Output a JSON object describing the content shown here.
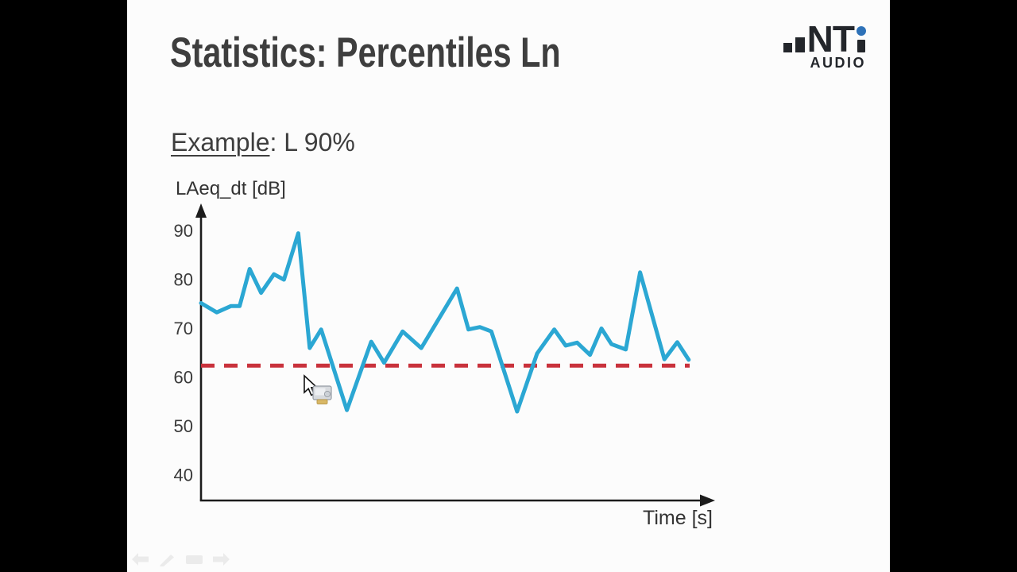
{
  "slide": {
    "title": "Statistics: Percentiles Ln",
    "example_label": "Example",
    "example_suffix": ": L 90%"
  },
  "logo": {
    "brand_nt": "NT",
    "subtitle": "AUDIO",
    "text_color": "#23262b",
    "dot_color": "#2e72b8"
  },
  "chart_data": {
    "type": "line",
    "title": "",
    "ylabel": "LAeq_dt [dB]",
    "xlabel": "Time [s]",
    "yticks": [
      90,
      80,
      70,
      60,
      50,
      40
    ],
    "ylim": [
      35,
      94
    ],
    "xlim": [
      0,
      35
    ],
    "grid": false,
    "legend": "none",
    "x": [
      0,
      1.1,
      2.1,
      2.7,
      3.4,
      4.2,
      5.1,
      5.8,
      6.8,
      7.6,
      8.4,
      10.2,
      11.9,
      12.8,
      14.1,
      15.4,
      17.9,
      18.7,
      19.5,
      20.3,
      22.1,
      23.5,
      24.7,
      25.5,
      26.3,
      27.2,
      28.0,
      28.7,
      29.7,
      30.7,
      32.4,
      33.3,
      34.1
    ],
    "series": [
      {
        "name": "LAeq_dt",
        "color": "#2ba7d3",
        "values": [
          75.2,
          73.3,
          74.6,
          74.6,
          82.2,
          77.3,
          81.1,
          80.0,
          89.5,
          66.0,
          69.8,
          53.3,
          67.3,
          63.0,
          69.4,
          66.0,
          78.2,
          69.8,
          70.3,
          69.4,
          53.0,
          64.9,
          69.8,
          66.5,
          67.1,
          64.6,
          70.0,
          66.8,
          65.7,
          81.5,
          63.7,
          67.2,
          63.6
        ]
      }
    ],
    "threshold": {
      "label": "L 90%",
      "value": 62.4,
      "color": "#c9323c",
      "style": "dashed"
    },
    "axis_color": "#1c1c1c",
    "tick_color": "#3a3a3a"
  },
  "cursor": {
    "pointer": "arrow-cursor",
    "attachment": "screen-icon"
  },
  "presenter_controls": {
    "items": [
      "previous-slide",
      "pen-tool",
      "slide-menu",
      "next-slide"
    ],
    "color": "#ebebeb"
  }
}
